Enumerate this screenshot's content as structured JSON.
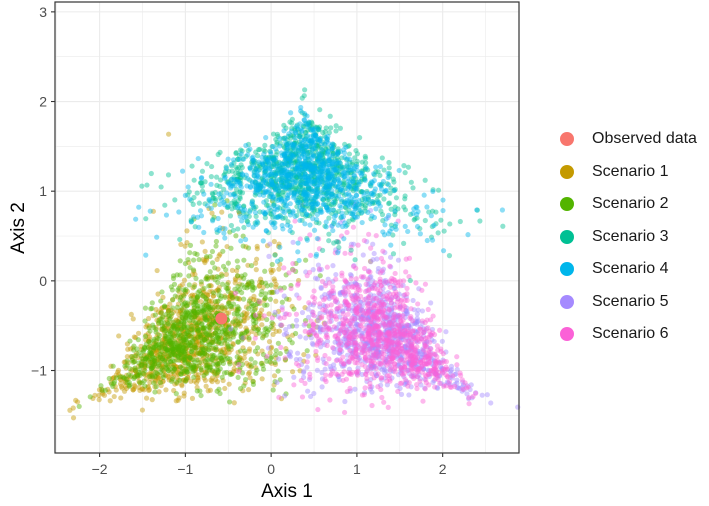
{
  "chart_data": {
    "type": "scatter",
    "title": "",
    "xlabel": "Axis 1",
    "ylabel": "Axis 2",
    "xlim": [
      -2.52,
      2.89
    ],
    "ylim": [
      -1.92,
      3.11
    ],
    "x_ticks": [
      -2,
      -1,
      0,
      1,
      2
    ],
    "y_ticks": [
      -1,
      0,
      1,
      2,
      3
    ],
    "x_tick_labels": [
      "−2",
      "−1",
      "0",
      "1",
      "2"
    ],
    "y_tick_labels": [
      "−1",
      "0",
      "1",
      "2",
      "3"
    ],
    "grid": true,
    "legend_position": "right",
    "series": [
      {
        "name": "Observed data",
        "color": "#F8766D",
        "points": [
          [
            -0.58,
            -0.42
          ]
        ],
        "size": 6
      },
      {
        "name": "Scenario 1",
        "color": "#C49A00",
        "center": [
          -0.9,
          -0.65
        ],
        "spread": [
          0.55,
          0.32
        ],
        "direction": [
          -0.9,
          -0.5
        ],
        "n": 900
      },
      {
        "name": "Scenario 2",
        "color": "#53B400",
        "center": [
          -0.85,
          -0.6
        ],
        "spread": [
          0.5,
          0.3
        ],
        "direction": [
          -0.9,
          -0.5
        ],
        "n": 900
      },
      {
        "name": "Scenario 3",
        "color": "#00C094",
        "center": [
          0.38,
          1.15
        ],
        "spread": [
          0.3,
          0.55
        ],
        "direction": [
          0.05,
          1.0
        ],
        "n": 900
      },
      {
        "name": "Scenario 4",
        "color": "#00B6EB",
        "center": [
          0.38,
          1.1
        ],
        "spread": [
          0.28,
          0.52
        ],
        "direction": [
          0.05,
          1.0
        ],
        "n": 900
      },
      {
        "name": "Scenario 5",
        "color": "#A58AFF",
        "center": [
          1.25,
          -0.6
        ],
        "spread": [
          0.5,
          0.3
        ],
        "direction": [
          0.88,
          -0.52
        ],
        "n": 900
      },
      {
        "name": "Scenario 6",
        "color": "#FB61D7",
        "center": [
          1.25,
          -0.6
        ],
        "spread": [
          0.5,
          0.3
        ],
        "direction": [
          0.88,
          -0.52
        ],
        "n": 900
      }
    ]
  },
  "legend": {
    "items": [
      {
        "label": "Observed data",
        "color": "#F8766D"
      },
      {
        "label": "Scenario 1",
        "color": "#C49A00"
      },
      {
        "label": "Scenario 2",
        "color": "#53B400"
      },
      {
        "label": "Scenario 3",
        "color": "#00C094"
      },
      {
        "label": "Scenario 4",
        "color": "#00B6EB"
      },
      {
        "label": "Scenario 5",
        "color": "#A58AFF"
      },
      {
        "label": "Scenario 6",
        "color": "#FB61D7"
      }
    ]
  }
}
